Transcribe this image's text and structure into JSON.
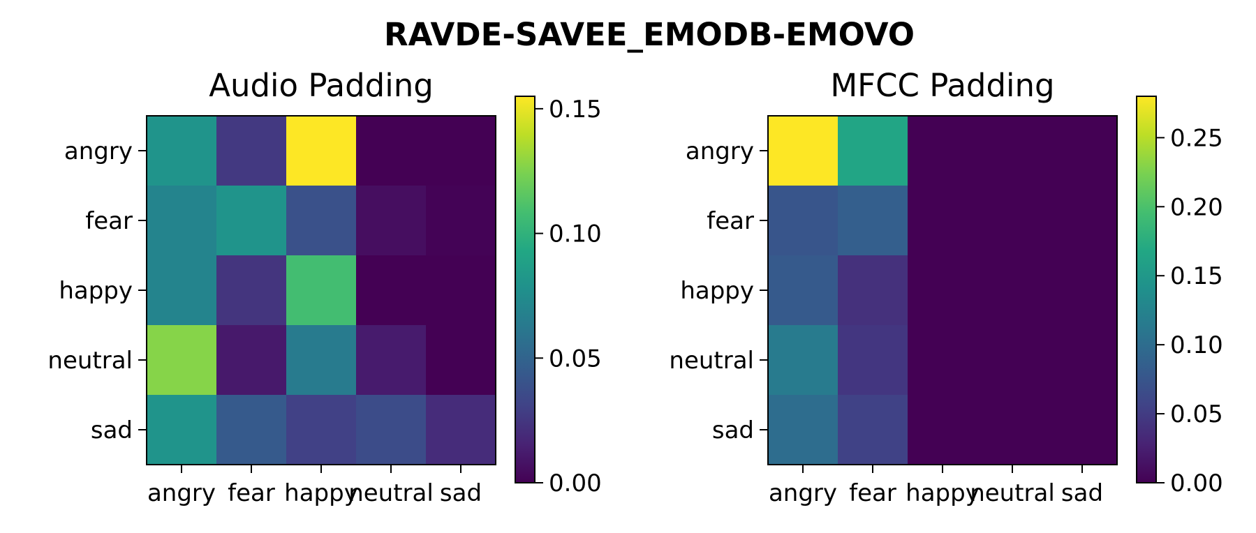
{
  "figure": {
    "title": "RAVDE-SAVEE_EMODB-EMOVO"
  },
  "chart_data": [
    {
      "type": "heatmap",
      "title": "Audio Padding",
      "rows": [
        "angry",
        "fear",
        "happy",
        "neutral",
        "sad"
      ],
      "cols": [
        "angry",
        "fear",
        "happy",
        "neutral",
        "sad"
      ],
      "values": [
        [
          0.08,
          0.026,
          0.155,
          0.0,
          0.0
        ],
        [
          0.07,
          0.08,
          0.039,
          0.006,
          0.001
        ],
        [
          0.07,
          0.024,
          0.108,
          0.0,
          0.0
        ],
        [
          0.127,
          0.011,
          0.064,
          0.012,
          0.0
        ],
        [
          0.08,
          0.044,
          0.03,
          0.036,
          0.02
        ]
      ],
      "vmin": 0.0,
      "vmax": 0.155,
      "colorbar_ticks": [
        0.0,
        0.05,
        0.1,
        0.15
      ],
      "colorbar_labels": [
        "0.00",
        "0.05",
        "0.10",
        "0.15"
      ],
      "colormap": "viridis"
    },
    {
      "type": "heatmap",
      "title": "MFCC Padding",
      "rows": [
        "angry",
        "fear",
        "happy",
        "neutral",
        "sad"
      ],
      "cols": [
        "angry",
        "fear",
        "happy",
        "neutral",
        "sad"
      ],
      "values": [
        [
          0.28,
          0.165,
          0.0,
          0.0,
          0.0
        ],
        [
          0.075,
          0.085,
          0.0,
          0.0,
          0.0
        ],
        [
          0.08,
          0.04,
          0.0,
          0.0,
          0.0
        ],
        [
          0.115,
          0.045,
          0.0,
          0.0,
          0.0
        ],
        [
          0.1,
          0.055,
          0.0,
          0.0,
          0.0
        ]
      ],
      "vmin": 0.0,
      "vmax": 0.28,
      "colorbar_ticks": [
        0.0,
        0.05,
        0.1,
        0.15,
        0.2,
        0.25
      ],
      "colorbar_labels": [
        "0.00",
        "0.05",
        "0.10",
        "0.15",
        "0.20",
        "0.25"
      ],
      "colormap": "viridis"
    }
  ]
}
